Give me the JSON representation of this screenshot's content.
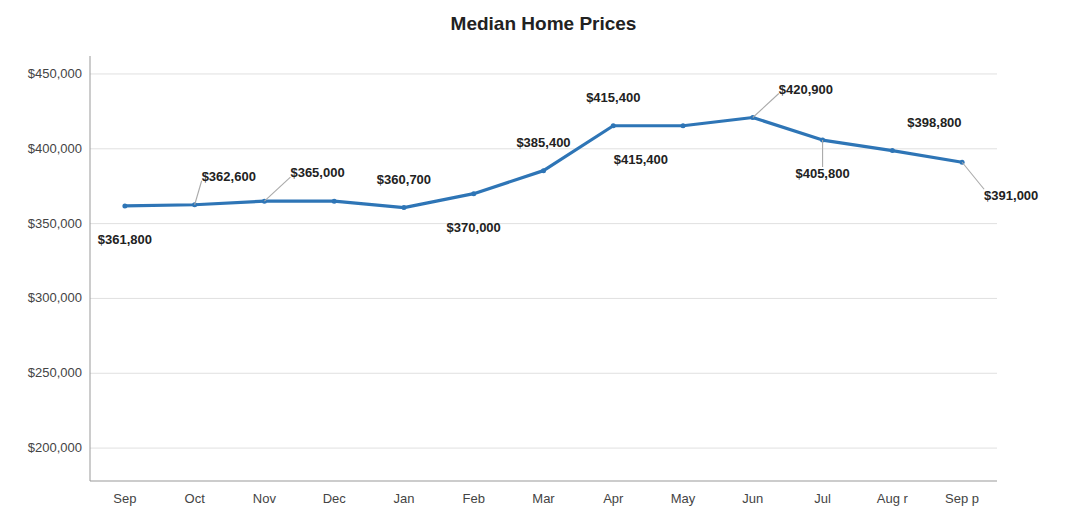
{
  "chart_data": {
    "type": "line",
    "title": "Median Home Prices",
    "categories": [
      "Sep",
      "Oct",
      "Nov",
      "Dec",
      "Jan",
      "Feb",
      "Mar",
      "Apr",
      "May",
      "Jun",
      "Jul",
      "Aug r",
      "Sep p"
    ],
    "values": [
      361800,
      362600,
      365000,
      365000,
      360700,
      370000,
      385400,
      415400,
      415400,
      420900,
      405800,
      398800,
      391000
    ],
    "value_labels": [
      "$361,800",
      "$362,600",
      "$365,000",
      null,
      "$360,700",
      "$370,000",
      "$385,400",
      "$415,400",
      "$415,400",
      "$420,900",
      "$405,800",
      "$398,800",
      "$391,000"
    ],
    "data_labels": true,
    "color": "#2E75B6",
    "ylim": [
      178000,
      462000
    ],
    "yticks": [
      {
        "value": 200000,
        "label": "$200,000"
      },
      {
        "value": 250000,
        "label": "$250,000"
      },
      {
        "value": 300000,
        "label": "$300,000"
      },
      {
        "value": 350000,
        "label": "$350,000"
      },
      {
        "value": 400000,
        "label": "$400,000"
      },
      {
        "value": 450000,
        "label": "$450,000"
      }
    ],
    "grid": true
  }
}
